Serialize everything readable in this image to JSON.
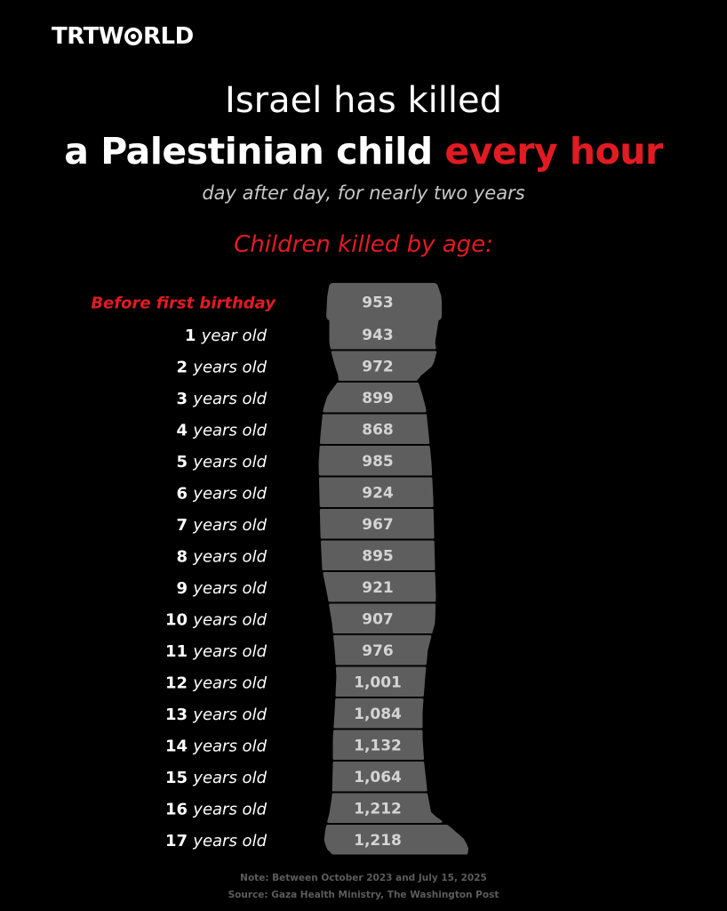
{
  "brand": {
    "logo_prefix": "TRT",
    "logo_o": "O",
    "logo_suffix": "RLD"
  },
  "header": {
    "title_line1": "Israel has killed",
    "title_line2_main": "a Palestinian child ",
    "title_line2_highlight": "every hour",
    "subtitle": "day after day, for nearly two years",
    "section_title": "Children killed by age:"
  },
  "colors": {
    "accent": "#e21b23",
    "bar": "#5e5e5e",
    "background": "#000000",
    "value_text": "#d4d4d4"
  },
  "chart_data": {
    "type": "bar",
    "title": "Children killed by age:",
    "categories": [
      {
        "number": "",
        "unit": "Before first birthday",
        "highlight": true
      },
      {
        "number": "1",
        "unit": "year old"
      },
      {
        "number": "2",
        "unit": "years old"
      },
      {
        "number": "3",
        "unit": "years old"
      },
      {
        "number": "4",
        "unit": "years old"
      },
      {
        "number": "5",
        "unit": "years old"
      },
      {
        "number": "6",
        "unit": "years old"
      },
      {
        "number": "7",
        "unit": "years old"
      },
      {
        "number": "8",
        "unit": "years old"
      },
      {
        "number": "9",
        "unit": "years old"
      },
      {
        "number": "10",
        "unit": "years old"
      },
      {
        "number": "11",
        "unit": "years old"
      },
      {
        "number": "12",
        "unit": "years old"
      },
      {
        "number": "13",
        "unit": "years old"
      },
      {
        "number": "14",
        "unit": "years old"
      },
      {
        "number": "15",
        "unit": "years old"
      },
      {
        "number": "16",
        "unit": "years old"
      },
      {
        "number": "17",
        "unit": "years old"
      }
    ],
    "values": [
      953,
      943,
      972,
      899,
      868,
      985,
      924,
      967,
      895,
      921,
      907,
      976,
      1001,
      1084,
      1132,
      1064,
      1212,
      1218
    ],
    "value_labels": [
      "953",
      "943",
      "972",
      "899",
      "868",
      "985",
      "924",
      "967",
      "895",
      "921",
      "907",
      "976",
      "1,001",
      "1,084",
      "1,132",
      "1,064",
      "1,212",
      "1,218"
    ]
  },
  "footer": {
    "note": "Note: Between October 2023 and July 15, 2025",
    "source": "Source: Gaza Health Ministry, The Washington Post"
  }
}
